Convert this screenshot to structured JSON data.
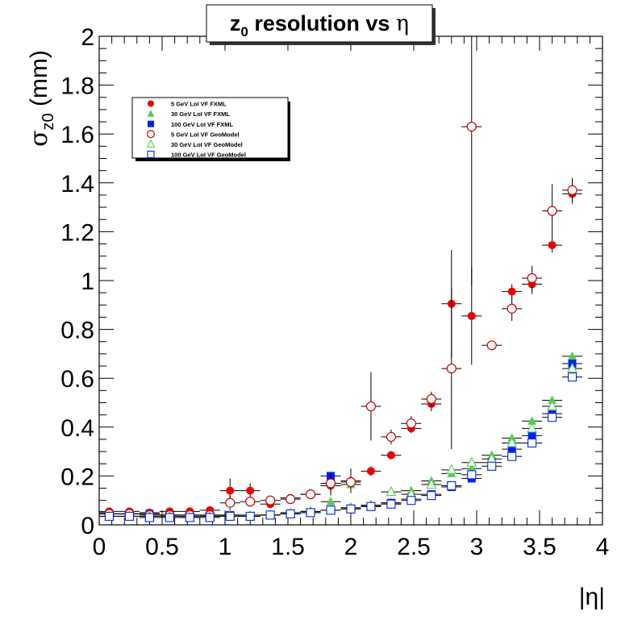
{
  "chart_data": {
    "type": "scatter",
    "title": {
      "main": "z",
      "sub": "0",
      "rest": " resolution vs ",
      "symbol": "η"
    },
    "xlabel": "|η|",
    "ylabel": {
      "sigma": "σ",
      "sub": "z0",
      "rest": " (mm)"
    },
    "xlim": [
      0,
      4
    ],
    "ylim": [
      0,
      2
    ],
    "xticks": [
      "0",
      "0.5",
      "1",
      "1.5",
      "2",
      "2.5",
      "3",
      "3.5",
      "4"
    ],
    "xtick_values": [
      0,
      0.5,
      1,
      1.5,
      2,
      2.5,
      3,
      3.5,
      4
    ],
    "yticks": [
      "0",
      "0.2",
      "0.4",
      "0.6",
      "0.8",
      "1",
      "1.2",
      "1.4",
      "1.6",
      "1.8",
      "2"
    ],
    "ytick_values": [
      0,
      0.2,
      0.4,
      0.6,
      0.8,
      1,
      1.2,
      1.4,
      1.6,
      1.8,
      2
    ],
    "grid": false,
    "legend_position": "top-left",
    "x_bin_halfwidth": 0.08,
    "x": [
      0.08,
      0.24,
      0.4,
      0.56,
      0.72,
      0.88,
      1.04,
      1.2,
      1.36,
      1.52,
      1.68,
      1.84,
      2.0,
      2.16,
      2.32,
      2.48,
      2.64,
      2.8,
      2.96,
      3.12,
      3.28,
      3.44,
      3.6,
      3.76,
      3.92
    ],
    "series": [
      {
        "name": "5 GeV LoI VF FXML",
        "marker": "filled-circle",
        "color": "#ee0000",
        "y": [
          0.055,
          0.055,
          0.05,
          0.055,
          0.055,
          0.06,
          0.14,
          0.14,
          0.085,
          0.11,
          0.125,
          0.16,
          0.18,
          0.22,
          0.285,
          0.395,
          0.495,
          0.905,
          0.855,
          null,
          0.955,
          0.985,
          1.145,
          1.355,
          null
        ],
        "err": [
          0.005,
          0.005,
          0.005,
          0.005,
          0.005,
          0.008,
          0.05,
          0.03,
          0.01,
          0.01,
          0.01,
          0.04,
          0.05,
          0.02,
          0.01,
          0.02,
          0.03,
          0.22,
          0.2,
          null,
          0.03,
          0.04,
          0.03,
          0.04,
          null
        ]
      },
      {
        "name": "30 GeV LoI VF FXML",
        "marker": "filled-triangle",
        "color": "#55cc55",
        "y": [
          0.045,
          0.045,
          0.045,
          0.04,
          0.04,
          0.04,
          0.04,
          0.04,
          0.04,
          0.05,
          0.055,
          0.095,
          0.165,
          0.08,
          0.09,
          0.14,
          0.18,
          0.21,
          0.23,
          0.285,
          0.355,
          0.425,
          0.51,
          0.69,
          null
        ],
        "err": [
          0.003,
          0.003,
          0.003,
          0.003,
          0.003,
          0.003,
          0.003,
          0.003,
          0.003,
          0.003,
          0.003,
          0.005,
          0.005,
          0.005,
          0.005,
          0.005,
          0.005,
          0.008,
          0.008,
          0.01,
          0.01,
          0.01,
          0.01,
          0.015,
          null
        ]
      },
      {
        "name": "100 GeV LoI VF FXML",
        "marker": "filled-square",
        "color": "#0022ee",
        "y": [
          0.045,
          0.045,
          0.045,
          0.04,
          0.035,
          0.035,
          0.04,
          0.035,
          0.04,
          0.045,
          0.05,
          0.2,
          0.065,
          0.075,
          0.09,
          0.105,
          0.125,
          0.155,
          0.19,
          0.255,
          0.31,
          0.365,
          0.455,
          0.66,
          null
        ],
        "err": [
          0.003,
          0.003,
          0.003,
          0.003,
          0.003,
          0.003,
          0.003,
          0.003,
          0.003,
          0.003,
          0.003,
          0.005,
          0.005,
          0.005,
          0.005,
          0.005,
          0.005,
          0.008,
          0.008,
          0.01,
          0.01,
          0.01,
          0.01,
          0.015,
          null
        ]
      },
      {
        "name": "5 GeV LoI VF GeoModel",
        "marker": "open-circle",
        "color": "#cc0000",
        "y": [
          0.045,
          0.045,
          0.04,
          0.04,
          0.04,
          0.04,
          0.09,
          0.095,
          0.1,
          0.105,
          0.125,
          0.17,
          0.175,
          0.485,
          0.36,
          0.415,
          0.515,
          0.64,
          1.63,
          0.735,
          0.885,
          1.01,
          1.285,
          1.37,
          null
        ],
        "err": [
          0.005,
          0.005,
          0.005,
          0.005,
          0.005,
          0.005,
          0.03,
          0.02,
          0.01,
          0.01,
          0.01,
          0.04,
          0.04,
          0.14,
          0.03,
          0.03,
          0.03,
          0.33,
          0.65,
          0.01,
          0.05,
          0.05,
          0.11,
          0.05,
          null
        ]
      },
      {
        "name": "30 GeV LoI VF GeoModel",
        "marker": "open-triangle",
        "color": "#55cc55",
        "y": [
          0.035,
          0.035,
          0.035,
          0.035,
          0.03,
          0.035,
          0.035,
          0.035,
          0.04,
          0.045,
          0.055,
          0.06,
          0.07,
          0.08,
          0.135,
          0.125,
          0.165,
          0.225,
          0.255,
          0.27,
          0.335,
          0.395,
          0.485,
          0.64,
          null
        ],
        "err": [
          0.003,
          0.003,
          0.003,
          0.003,
          0.003,
          0.003,
          0.003,
          0.003,
          0.003,
          0.003,
          0.003,
          0.005,
          0.005,
          0.005,
          0.005,
          0.005,
          0.005,
          0.008,
          0.008,
          0.01,
          0.01,
          0.01,
          0.01,
          0.015,
          null
        ]
      },
      {
        "name": "100 GeV LoI VF GeoModel",
        "marker": "open-square",
        "color": "#0022ee",
        "y": [
          0.035,
          0.035,
          0.03,
          0.03,
          0.03,
          0.03,
          0.035,
          0.035,
          0.04,
          0.045,
          0.05,
          0.06,
          0.065,
          0.075,
          0.085,
          0.1,
          0.12,
          0.16,
          0.205,
          0.24,
          0.28,
          0.335,
          0.44,
          0.605,
          null
        ],
        "err": [
          0.003,
          0.003,
          0.003,
          0.003,
          0.003,
          0.003,
          0.003,
          0.003,
          0.003,
          0.003,
          0.003,
          0.005,
          0.005,
          0.005,
          0.005,
          0.005,
          0.005,
          0.008,
          0.008,
          0.01,
          0.01,
          0.01,
          0.01,
          0.015,
          null
        ]
      }
    ]
  }
}
